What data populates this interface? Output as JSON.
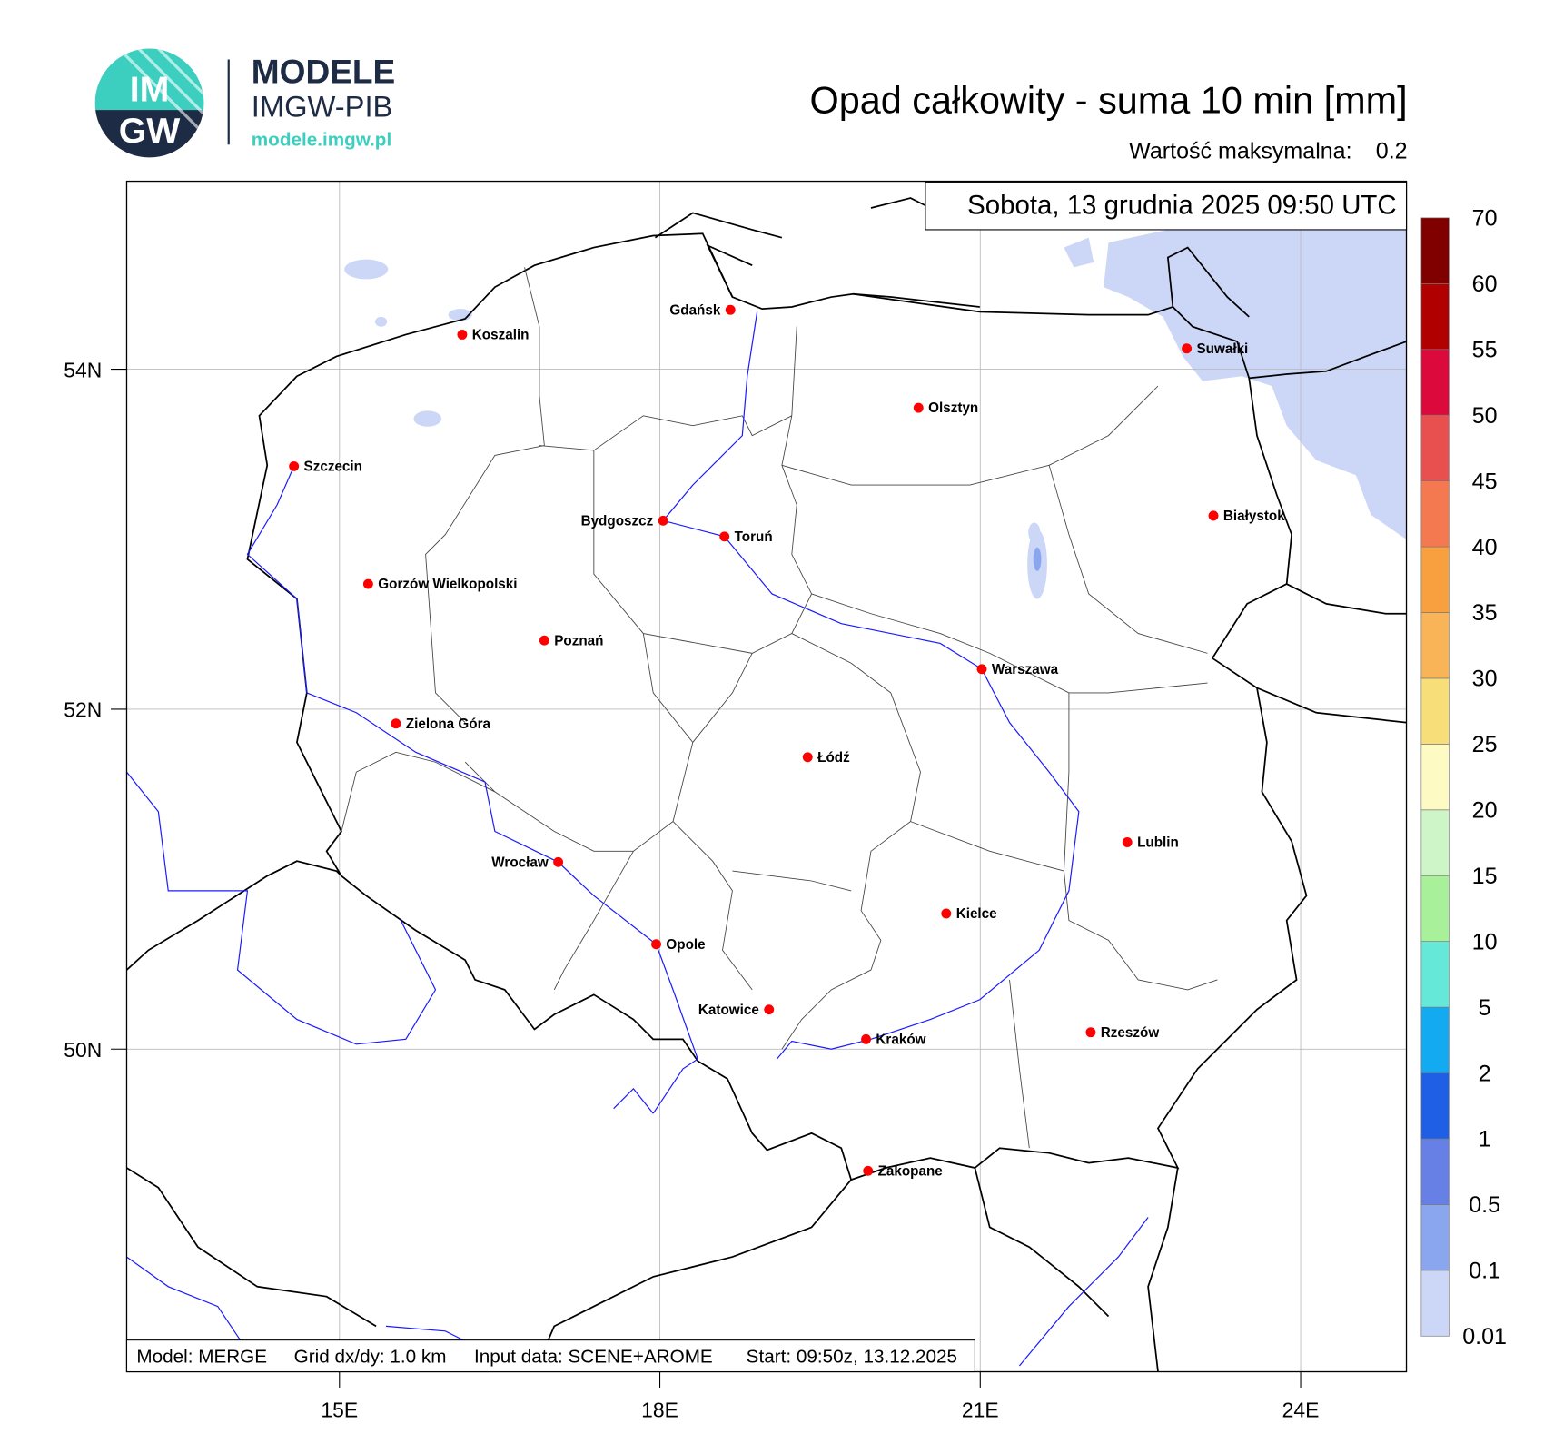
{
  "logo": {
    "badge_top": "IM",
    "badge_bottom": "GW",
    "name": "MODELE",
    "org": "IMGW-PIB",
    "url": "modele.imgw.pl"
  },
  "header": {
    "title": "Opad całkowity - suma 10 min [mm]",
    "max_label": "Wartość maksymalna:",
    "max_value": 0.2
  },
  "map": {
    "date": "Sobota, 13 grudnia 2025 09:50 UTC",
    "lat_ticks": [
      {
        "value": 54,
        "label": "54N"
      },
      {
        "value": 52,
        "label": "52N"
      },
      {
        "value": 50,
        "label": "50N"
      }
    ],
    "lon_ticks": [
      {
        "value": 15,
        "label": "15E"
      },
      {
        "value": 18,
        "label": "18E"
      },
      {
        "value": 21,
        "label": "21E"
      },
      {
        "value": 24,
        "label": "24E"
      }
    ],
    "cities": [
      "Gdańsk",
      "Koszalin",
      "Suwałki",
      "Olsztyn",
      "Szczecin",
      "Białystok",
      "Bydgoszcz",
      "Toruń",
      "Gorzów Wielkopolski",
      "Poznań",
      "Warszawa",
      "Zielona Góra",
      "Łódź",
      "Lublin",
      "Wrocław",
      "Kielce",
      "Opole",
      "Katowice",
      "Rzeszów",
      "Kraków",
      "Zakopane"
    ],
    "info": [
      "Model: MERGE",
      "Grid dx/dy: 1.0 km",
      "Input data: SCENE+AROME",
      "Start: 09:50z, 13.12.2025"
    ]
  },
  "colorbar": {
    "levels": [
      0.01,
      0.1,
      0.5,
      1,
      2,
      5,
      10,
      15,
      20,
      25,
      30,
      35,
      40,
      45,
      50,
      55,
      60,
      70
    ],
    "colors": [
      "#ccd6f6",
      "#8aa6ee",
      "#6680e6",
      "#1f5fe6",
      "#14aaf2",
      "#66e8d8",
      "#a8f09a",
      "#cdf5c8",
      "#fdfac4",
      "#f8de78",
      "#f8b456",
      "#f8a040",
      "#f47850",
      "#e85050",
      "#dc0a3c",
      "#b00000",
      "#800000"
    ]
  }
}
